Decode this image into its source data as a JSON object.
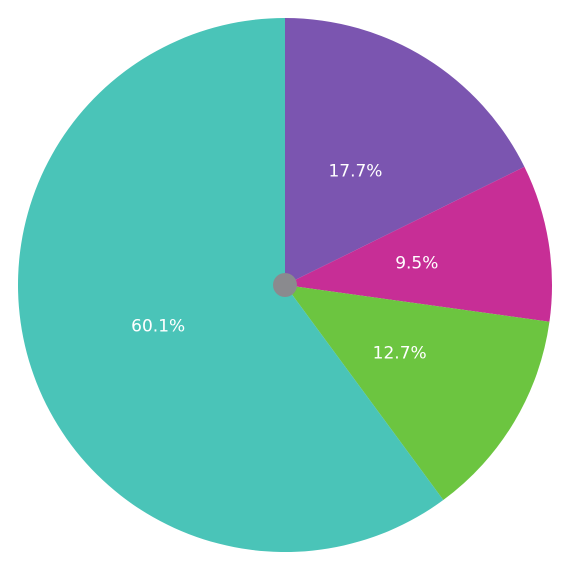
{
  "chart_data": {
    "type": "pie",
    "values": [
      17.7,
      9.5,
      12.7,
      60.1
    ],
    "value_labels": [
      "17.7%",
      "9.5%",
      "12.7%",
      "60.1%"
    ],
    "colors": [
      "#7b55b0",
      "#c72e96",
      "#6cc540",
      "#4ac4b8"
    ]
  }
}
